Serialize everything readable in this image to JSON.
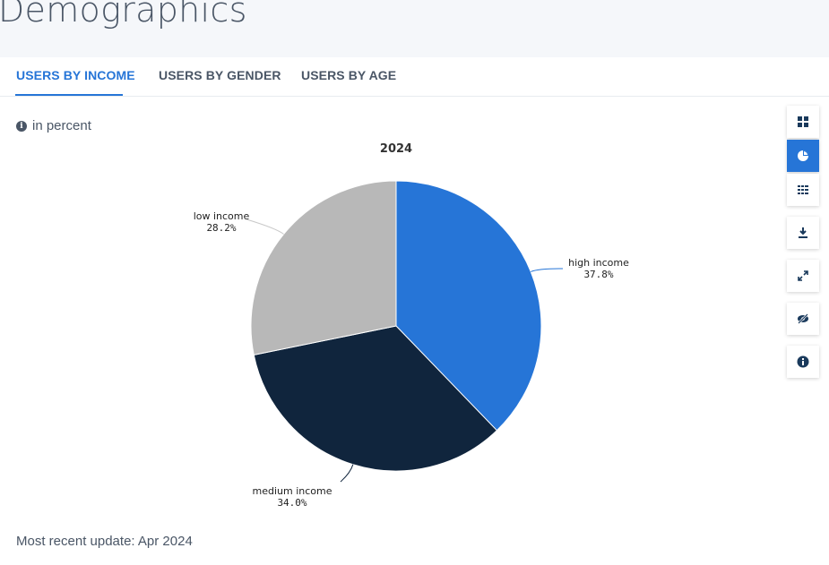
{
  "page": {
    "title": "Demographics"
  },
  "tabs": [
    {
      "label": "USERS BY INCOME",
      "active": true
    },
    {
      "label": "USERS BY GENDER",
      "active": false
    },
    {
      "label": "USERS BY AGE",
      "active": false
    }
  ],
  "unit_note": "in percent",
  "footer": {
    "update_text": "Most recent update: Apr 2024"
  },
  "toolbar": {
    "buttons": [
      {
        "icon": "grid-icon",
        "active": false
      },
      {
        "icon": "pie-chart-icon",
        "active": true
      },
      {
        "icon": "table-icon",
        "active": false
      },
      {
        "icon": "download-icon",
        "active": false
      },
      {
        "icon": "expand-icon",
        "active": false
      },
      {
        "icon": "hide-icon",
        "active": false
      },
      {
        "icon": "info-icon",
        "active": false
      }
    ]
  },
  "colors": {
    "accent": "#2675d7",
    "text": "#4a5666"
  },
  "chart_data": {
    "type": "pie",
    "title": "2024",
    "categories": [
      "high income",
      "medium income",
      "low income"
    ],
    "values": [
      37.8,
      34.0,
      28.2
    ],
    "value_labels": [
      "37.8%",
      "34.0%",
      "28.2%"
    ],
    "colors": [
      "#2675d7",
      "#10253d",
      "#b8b8b8"
    ],
    "start_angle_deg": 0,
    "direction": "clockwise"
  }
}
